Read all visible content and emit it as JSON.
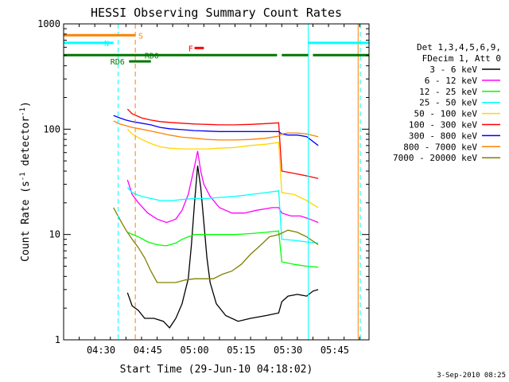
{
  "chart_data": {
    "type": "line",
    "title": "HESSI Observing Summary Count Rates",
    "xlabel": "Start Time (29-Jun-10 04:18:02)",
    "ylabel": "Count Rate (s^-1 detector^-1)",
    "ylabel_base": "Count Rate (s",
    "ylabel_sup1": "-1",
    "ylabel_mid": " detector",
    "ylabel_sup2": "-1",
    "ylabel_end": ")",
    "x_unit": "minutes since 04:18:02",
    "xlim": [
      0,
      98
    ],
    "ylim": [
      1,
      1000
    ],
    "yscale": "log",
    "x_ticks": [
      {
        "t": 12,
        "label": "04:30"
      },
      {
        "t": 27,
        "label": "04:45"
      },
      {
        "t": 42,
        "label": "05:00"
      },
      {
        "t": 57,
        "label": "05:15"
      },
      {
        "t": 72,
        "label": "05:30"
      },
      {
        "t": 87,
        "label": "05:45"
      }
    ],
    "y_ticks": [
      {
        "v": 1,
        "label": "1"
      },
      {
        "v": 10,
        "label": "10"
      },
      {
        "v": 100,
        "label": "100"
      },
      {
        "v": 1000,
        "label": "1000"
      }
    ],
    "legend_header": [
      "Det 1,3,4,5,6,9,",
      "FDecim 1, Att 0"
    ],
    "legend_placement": "right",
    "series": [
      {
        "name": "3 - 6 keV",
        "color": "#000000",
        "points": [
          [
            20.5,
            2.8
          ],
          [
            22,
            2.1
          ],
          [
            24,
            1.9
          ],
          [
            26,
            1.6
          ],
          [
            29,
            1.6
          ],
          [
            32,
            1.5
          ],
          [
            34,
            1.3
          ],
          [
            36,
            1.6
          ],
          [
            38,
            2.2
          ],
          [
            40,
            3.8
          ],
          [
            41,
            8
          ],
          [
            42,
            20
          ],
          [
            43,
            45
          ],
          [
            44,
            28
          ],
          [
            45,
            13
          ],
          [
            46,
            6
          ],
          [
            47,
            3.5
          ],
          [
            49,
            2.2
          ],
          [
            52,
            1.7
          ],
          [
            56,
            1.5
          ],
          [
            60,
            1.6
          ],
          [
            65,
            1.7
          ],
          [
            69,
            1.8
          ],
          [
            70,
            2.3
          ],
          [
            72,
            2.6
          ],
          [
            75,
            2.7
          ],
          [
            78,
            2.6
          ],
          [
            80,
            2.9
          ],
          [
            81.7,
            3.0
          ]
        ]
      },
      {
        "name": "6 - 12 keV",
        "color": "#ff00ff",
        "points": [
          [
            20.5,
            33
          ],
          [
            22,
            24
          ],
          [
            24,
            20
          ],
          [
            27,
            16
          ],
          [
            30,
            14
          ],
          [
            33,
            13
          ],
          [
            36,
            14
          ],
          [
            38,
            17
          ],
          [
            40,
            24
          ],
          [
            41.5,
            38
          ],
          [
            42.5,
            52
          ],
          [
            43,
            62
          ],
          [
            44,
            40
          ],
          [
            45,
            30
          ],
          [
            47,
            23
          ],
          [
            50,
            18
          ],
          [
            54,
            16
          ],
          [
            58,
            16
          ],
          [
            62,
            17
          ],
          [
            67,
            18
          ],
          [
            69,
            18
          ],
          [
            70,
            16
          ],
          [
            73,
            15
          ],
          [
            76,
            15
          ],
          [
            79,
            14
          ],
          [
            81.7,
            13
          ]
        ]
      },
      {
        "name": "12 - 25 keV",
        "color": "#00ff00",
        "points": [
          [
            20.5,
            10.5
          ],
          [
            24,
            9.5
          ],
          [
            27,
            8.5
          ],
          [
            30,
            8.0
          ],
          [
            33,
            7.8
          ],
          [
            36,
            8.3
          ],
          [
            38,
            9.0
          ],
          [
            40,
            9.5
          ],
          [
            42,
            10
          ],
          [
            45,
            10
          ],
          [
            50,
            10
          ],
          [
            55,
            10
          ],
          [
            60,
            10.2
          ],
          [
            65,
            10.5
          ],
          [
            69,
            10.8
          ],
          [
            70,
            5.5
          ],
          [
            74,
            5.2
          ],
          [
            78,
            5.0
          ],
          [
            81.7,
            4.9
          ]
        ]
      },
      {
        "name": "25 - 50 keV",
        "color": "#00ffff",
        "points": [
          [
            20.5,
            28
          ],
          [
            22,
            25
          ],
          [
            25,
            23
          ],
          [
            28,
            22
          ],
          [
            31,
            21
          ],
          [
            35,
            21
          ],
          [
            38,
            21.5
          ],
          [
            42,
            22
          ],
          [
            46,
            22
          ],
          [
            50,
            22.5
          ],
          [
            55,
            23
          ],
          [
            60,
            24
          ],
          [
            65,
            25
          ],
          [
            69,
            26
          ],
          [
            70,
            9
          ],
          [
            74,
            8.8
          ],
          [
            78,
            8.5
          ],
          [
            81.7,
            8.3
          ]
        ]
      },
      {
        "name": "50 - 100 keV",
        "color": "#ffd700",
        "points": [
          [
            20.5,
            100
          ],
          [
            22,
            90
          ],
          [
            25,
            80
          ],
          [
            28,
            73
          ],
          [
            31,
            68
          ],
          [
            34,
            66
          ],
          [
            38,
            65
          ],
          [
            42,
            65
          ],
          [
            46,
            65
          ],
          [
            50,
            66
          ],
          [
            55,
            67
          ],
          [
            60,
            70
          ],
          [
            65,
            72
          ],
          [
            69,
            75
          ],
          [
            70,
            25
          ],
          [
            74,
            24
          ],
          [
            78,
            21
          ],
          [
            81.7,
            18
          ]
        ]
      },
      {
        "name": "100 - 300 keV",
        "color": "#ff0000",
        "points": [
          [
            20.5,
            155
          ],
          [
            22,
            140
          ],
          [
            25,
            128
          ],
          [
            28,
            122
          ],
          [
            31,
            118
          ],
          [
            34,
            116
          ],
          [
            38,
            114
          ],
          [
            42,
            112
          ],
          [
            46,
            111
          ],
          [
            50,
            110
          ],
          [
            55,
            110
          ],
          [
            60,
            111
          ],
          [
            65,
            113
          ],
          [
            69,
            115
          ],
          [
            70,
            40
          ],
          [
            74,
            38
          ],
          [
            78,
            36
          ],
          [
            81.7,
            34
          ]
        ]
      },
      {
        "name": "300 - 800 keV",
        "color": "#0000ff",
        "points": [
          [
            16,
            135
          ],
          [
            18,
            128
          ],
          [
            20,
            122
          ],
          [
            22,
            118
          ],
          [
            25,
            114
          ],
          [
            28,
            110
          ],
          [
            31,
            104
          ],
          [
            34,
            101
          ],
          [
            38,
            99
          ],
          [
            42,
            97
          ],
          [
            46,
            96
          ],
          [
            50,
            95
          ],
          [
            55,
            95
          ],
          [
            60,
            95
          ],
          [
            65,
            95
          ],
          [
            69,
            95
          ],
          [
            70,
            90
          ],
          [
            72,
            88
          ],
          [
            75,
            88
          ],
          [
            78,
            85
          ],
          [
            81.7,
            70
          ]
        ]
      },
      {
        "name": "800 - 7000 keV",
        "color": "#ff8000",
        "points": [
          [
            16,
            120
          ],
          [
            18,
            112
          ],
          [
            20,
            108
          ],
          [
            22,
            104
          ],
          [
            25,
            100
          ],
          [
            28,
            96
          ],
          [
            31,
            92
          ],
          [
            34,
            88
          ],
          [
            38,
            84
          ],
          [
            42,
            82
          ],
          [
            46,
            80
          ],
          [
            50,
            79
          ],
          [
            55,
            79
          ],
          [
            60,
            80
          ],
          [
            65,
            82
          ],
          [
            69,
            86
          ],
          [
            70,
            90
          ],
          [
            72,
            92
          ],
          [
            75,
            92
          ],
          [
            78,
            90
          ],
          [
            81.7,
            85
          ]
        ]
      },
      {
        "name": "7000 - 20000 keV",
        "color": "#808000",
        "points": [
          [
            16,
            18
          ],
          [
            18,
            14
          ],
          [
            20,
            11
          ],
          [
            22,
            9
          ],
          [
            24,
            7.5
          ],
          [
            26,
            6
          ],
          [
            28,
            4.5
          ],
          [
            30,
            3.5
          ],
          [
            33,
            3.5
          ],
          [
            36,
            3.5
          ],
          [
            39,
            3.7
          ],
          [
            42,
            3.8
          ],
          [
            45,
            3.8
          ],
          [
            48,
            3.8
          ],
          [
            51,
            4.2
          ],
          [
            54,
            4.5
          ],
          [
            57,
            5.2
          ],
          [
            60,
            6.5
          ],
          [
            63,
            7.8
          ],
          [
            66,
            9.5
          ],
          [
            69,
            10
          ],
          [
            72,
            11
          ],
          [
            75,
            10.5
          ],
          [
            78,
            9.5
          ],
          [
            81.7,
            8.0
          ]
        ]
      }
    ],
    "flag_bars": [
      {
        "label": "S",
        "color": "#ff8000",
        "value": 780,
        "segments": [
          [
            0,
            23
          ]
        ],
        "label_at": 24
      },
      {
        "label": "N",
        "color": "#00ffff",
        "value": 660,
        "segments": [
          [
            0,
            16
          ],
          [
            78.5,
            98
          ]
        ],
        "label_at": 13
      },
      {
        "label": "F",
        "color": "#ff0000",
        "value": 590,
        "segments": [
          [
            42,
            45
          ]
        ],
        "label_at": 40
      },
      {
        "label": "RD0",
        "color": "#007700",
        "value": 505,
        "segments": [
          [
            0,
            68.5
          ],
          [
            70,
            78.5
          ],
          [
            80,
            98
          ]
        ],
        "label_at": 26
      },
      {
        "label": "RD6",
        "color": "#007700",
        "value": 440,
        "segments": [
          [
            21,
            28
          ]
        ],
        "label_at": 15
      }
    ],
    "markers": [
      {
        "t": 0,
        "color": "#00ffff",
        "style": "solid"
      },
      {
        "t": 17.5,
        "color": "#00ffff",
        "style": "dashed"
      },
      {
        "t": 23,
        "color": "#ff8000",
        "style": "dashed"
      },
      {
        "t": 78.5,
        "color": "#00ffff",
        "style": "solid"
      },
      {
        "t": 94.5,
        "color": "#ff8000",
        "style": "solid"
      },
      {
        "t": 95.2,
        "color": "#00ffff",
        "style": "dashed"
      }
    ],
    "grid": false
  },
  "footer": {
    "date_stamp": "3-Sep-2010 08:25"
  }
}
